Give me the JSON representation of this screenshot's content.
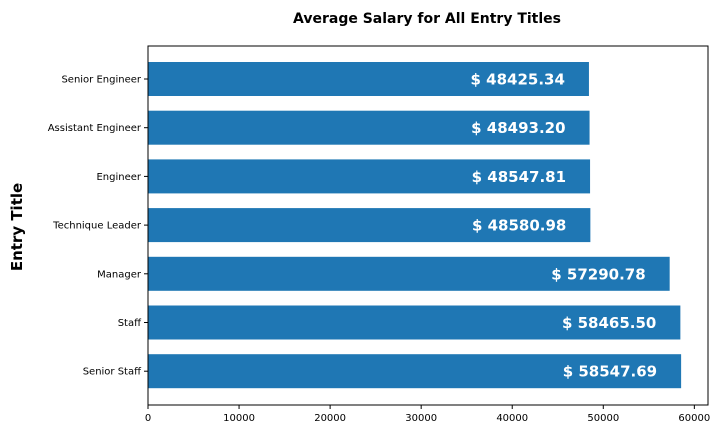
{
  "chart_data": {
    "type": "bar",
    "orientation": "horizontal",
    "title": "Average Salary for All Entry Titles",
    "xlabel": "",
    "ylabel": "Entry Title",
    "categories": [
      "Senior Engineer",
      "Assistant Engineer",
      "Engineer",
      "Technique Leader",
      "Manager",
      "Staff",
      "Senior Staff"
    ],
    "values": [
      48425.34,
      48493.2,
      48547.81,
      48580.98,
      57290.78,
      58465.5,
      58547.69
    ],
    "data_labels": [
      "$ 48425.34",
      "$ 48493.20",
      "$ 48547.81",
      "$ 48580.98",
      "$ 57290.78",
      "$ 58465.50",
      "$ 58547.69"
    ],
    "xlim": [
      0,
      61500
    ],
    "xticks": [
      "0",
      "10000",
      "20000",
      "30000",
      "40000",
      "50000",
      "60000"
    ],
    "grid": false,
    "bar_color": "#1f77b4",
    "label_color": "#ffffff"
  }
}
